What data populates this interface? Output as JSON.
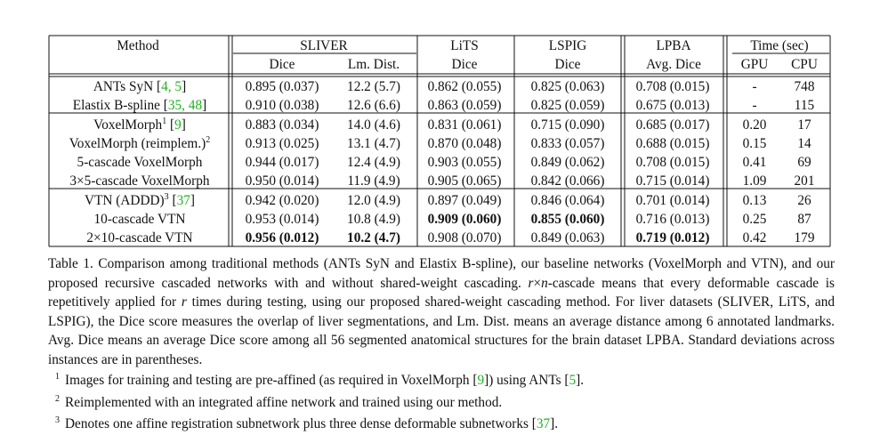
{
  "table": {
    "group_headers": {
      "method": "Method",
      "sliver": "SLIVER",
      "lits": "LiTS",
      "lspig": "LSPIG",
      "lpba": "LPBA",
      "time": "Time (sec)"
    },
    "sub_headers": {
      "sliver_dice": "Dice",
      "sliver_lm": "Lm. Dist.",
      "lits_dice": "Dice",
      "lspig_dice": "Dice",
      "lpba_avg": "Avg. Dice",
      "gpu": "GPU",
      "cpu": "CPU"
    },
    "rows": [
      {
        "method": "ANTs SyN [",
        "cite": "4, 5",
        "close": "]",
        "sliver_dice": "0.895 (0.037)",
        "sliver_lm": "12.2 (5.7)",
        "lits": "0.862 (0.055)",
        "lspig": "0.825 (0.063)",
        "lpba": "0.708 (0.015)",
        "gpu": "-",
        "cpu": "748"
      },
      {
        "method": "Elastix B-spline [",
        "cite": "35, 48",
        "close": "]",
        "sliver_dice": "0.910 (0.038)",
        "sliver_lm": "12.6 (6.6)",
        "lits": "0.863 (0.059)",
        "lspig": "0.825 (0.059)",
        "lpba": "0.675 (0.013)",
        "gpu": "-",
        "cpu": "115"
      },
      {
        "method": "VoxelMorph",
        "sup": "1",
        "pre": " [",
        "cite": "9",
        "close": "]",
        "sliver_dice": "0.883 (0.034)",
        "sliver_lm": "14.0 (4.6)",
        "lits": "0.831 (0.061)",
        "lspig": "0.715 (0.090)",
        "lpba": "0.685 (0.017)",
        "gpu": "0.20",
        "cpu": "17"
      },
      {
        "method": "VoxelMorph (reimplem.)",
        "sup": "2",
        "sliver_dice": "0.913 (0.025)",
        "sliver_lm": "13.1 (4.7)",
        "lits": "0.870 (0.048)",
        "lspig": "0.833 (0.057)",
        "lpba": "0.688 (0.015)",
        "gpu": "0.15",
        "cpu": "14"
      },
      {
        "method": "5-cascade VoxelMorph",
        "sliver_dice": "0.944 (0.017)",
        "sliver_lm": "12.4 (4.9)",
        "lits": "0.903 (0.055)",
        "lspig": "0.849 (0.062)",
        "lpba": "0.708 (0.015)",
        "gpu": "0.41",
        "cpu": "69"
      },
      {
        "method": "3×5-cascade VoxelMorph",
        "sliver_dice": "0.950 (0.014)",
        "sliver_lm": "11.9 (4.9)",
        "lits": "0.905 (0.065)",
        "lspig": "0.842 (0.066)",
        "lpba": "0.715 (0.014)",
        "gpu": "1.09",
        "cpu": "201"
      },
      {
        "method": "VTN (ADDD)",
        "sup": "3",
        "pre": " [",
        "cite": "37",
        "close": "]",
        "sliver_dice": "0.942 (0.020)",
        "sliver_lm": "12.0 (4.9)",
        "lits": "0.897 (0.049)",
        "lspig": "0.846 (0.064)",
        "lpba": "0.701 (0.014)",
        "gpu": "0.13",
        "cpu": "26"
      },
      {
        "method": "10-cascade VTN",
        "sliver_dice": "0.953 (0.014)",
        "sliver_lm": "10.8 (4.9)",
        "lits": "0.909 (0.060)",
        "lspig": "0.855 (0.060)",
        "lpba": "0.716 (0.013)",
        "gpu": "0.25",
        "cpu": "87"
      },
      {
        "method": "2×10-cascade VTN",
        "sliver_dice": "0.956 (0.012)",
        "sliver_lm": "10.2 (4.7)",
        "lits": "0.908 (0.070)",
        "lspig": "0.849 (0.063)",
        "lpba": "0.719 (0.012)",
        "gpu": "0.42",
        "cpu": "179"
      }
    ]
  },
  "caption": {
    "part1": "Table 1. Comparison among traditional methods (ANTs SyN and Elastix B-spline), our baseline networks (VoxelMorph and VTN), and our proposed recursive cascaded networks with and without shared-weight cascading. ",
    "r": "r",
    "times": "×",
    "n": "n",
    "part2": "-cascade means that every deformable cascade is repetitively applied for ",
    "r2": "r",
    "part3": " times during testing, using our proposed shared-weight cascading method. For liver datasets (SLIVER, LiTS, and LSPIG), the Dice score measures the overlap of liver segmentations, and Lm. Dist. means an average distance among 6 annotated landmarks. Avg. Dice means an average Dice score among all 56 segmented anatomical structures for the brain dataset LPBA. Standard deviations across instances are in parentheses."
  },
  "footnotes": [
    {
      "num": "1",
      "pre": "Images for training and testing are pre-affined (as required in VoxelMorph [",
      "cite": "9",
      "mid": "]) using ANTs [",
      "cite2": "5",
      "post": "]."
    },
    {
      "num": "2",
      "pre": "Reimplemented with an integrated affine network and trained using our method."
    },
    {
      "num": "3",
      "pre": "Denotes one affine registration subnetwork plus three dense deformable subnetworks [",
      "cite": "37",
      "post": "]."
    }
  ]
}
